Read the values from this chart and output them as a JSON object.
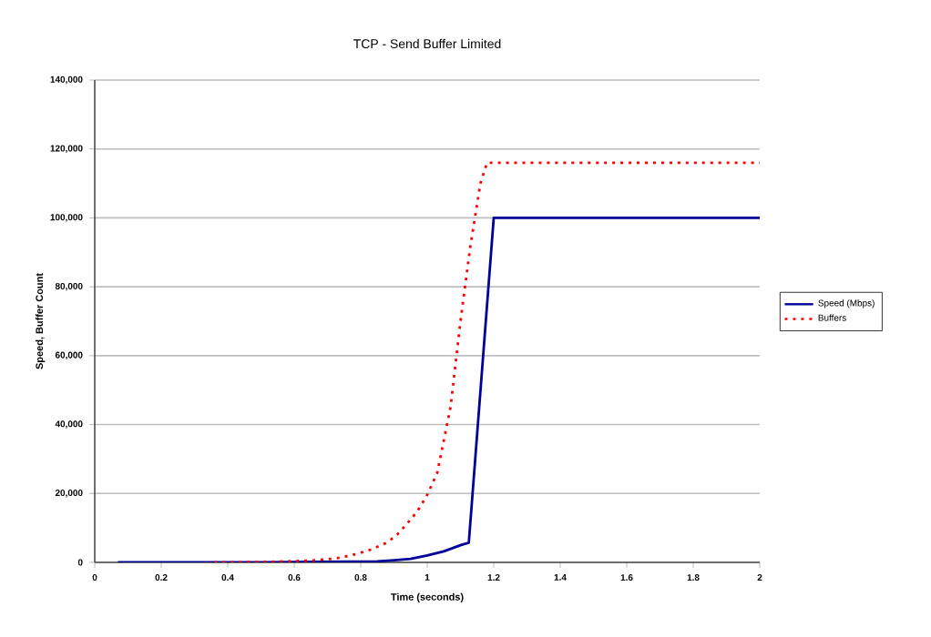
{
  "chart_data": {
    "type": "line",
    "title": "TCP - Send Buffer Limited",
    "xlabel": "Time (seconds)",
    "ylabel": "Speed, Buffer Count",
    "xlim": [
      0,
      2
    ],
    "ylim": [
      0,
      140000
    ],
    "xticks": [
      0,
      0.2,
      0.4,
      0.6,
      0.8,
      1,
      1.2,
      1.4,
      1.6,
      1.8,
      2
    ],
    "yticks": [
      0,
      {
        "value": 20000,
        "label": "20,000"
      },
      {
        "value": 40000,
        "label": "40,000"
      },
      {
        "value": 60000,
        "label": "60,000"
      },
      {
        "value": 80000,
        "label": "80,000"
      },
      {
        "value": 100000,
        "label": "100,000"
      },
      {
        "value": 120000,
        "label": "120,000"
      },
      {
        "value": 140000,
        "label": "140,000"
      }
    ],
    "grid": "y",
    "legend": "right",
    "marker": "none",
    "series": [
      {
        "name": "Speed (Mbps)",
        "color": "#000099",
        "line_style": "solid",
        "x": [
          0.07,
          0.5,
          0.85,
          0.9,
          0.95,
          1.0,
          1.05,
          1.1,
          1.125,
          1.2,
          2
        ],
        "values": [
          0,
          0,
          300,
          600,
          1000,
          2000,
          3200,
          5000,
          5700,
          100000,
          100000
        ]
      },
      {
        "name": "Buffers",
        "color": "#ff0000",
        "line_style": "dotted",
        "x": [
          0.36,
          0.5,
          0.65,
          0.7,
          0.74,
          0.79,
          0.83,
          0.88,
          0.91,
          0.94,
          0.97,
          1.0,
          1.03,
          1.07,
          1.1,
          1.13,
          1.16,
          1.18,
          2
        ],
        "values": [
          0,
          100,
          500,
          900,
          1400,
          2500,
          3700,
          5800,
          8100,
          11300,
          14800,
          19600,
          26000,
          45000,
          70000,
          92000,
          110000,
          116000,
          116000
        ]
      }
    ]
  }
}
